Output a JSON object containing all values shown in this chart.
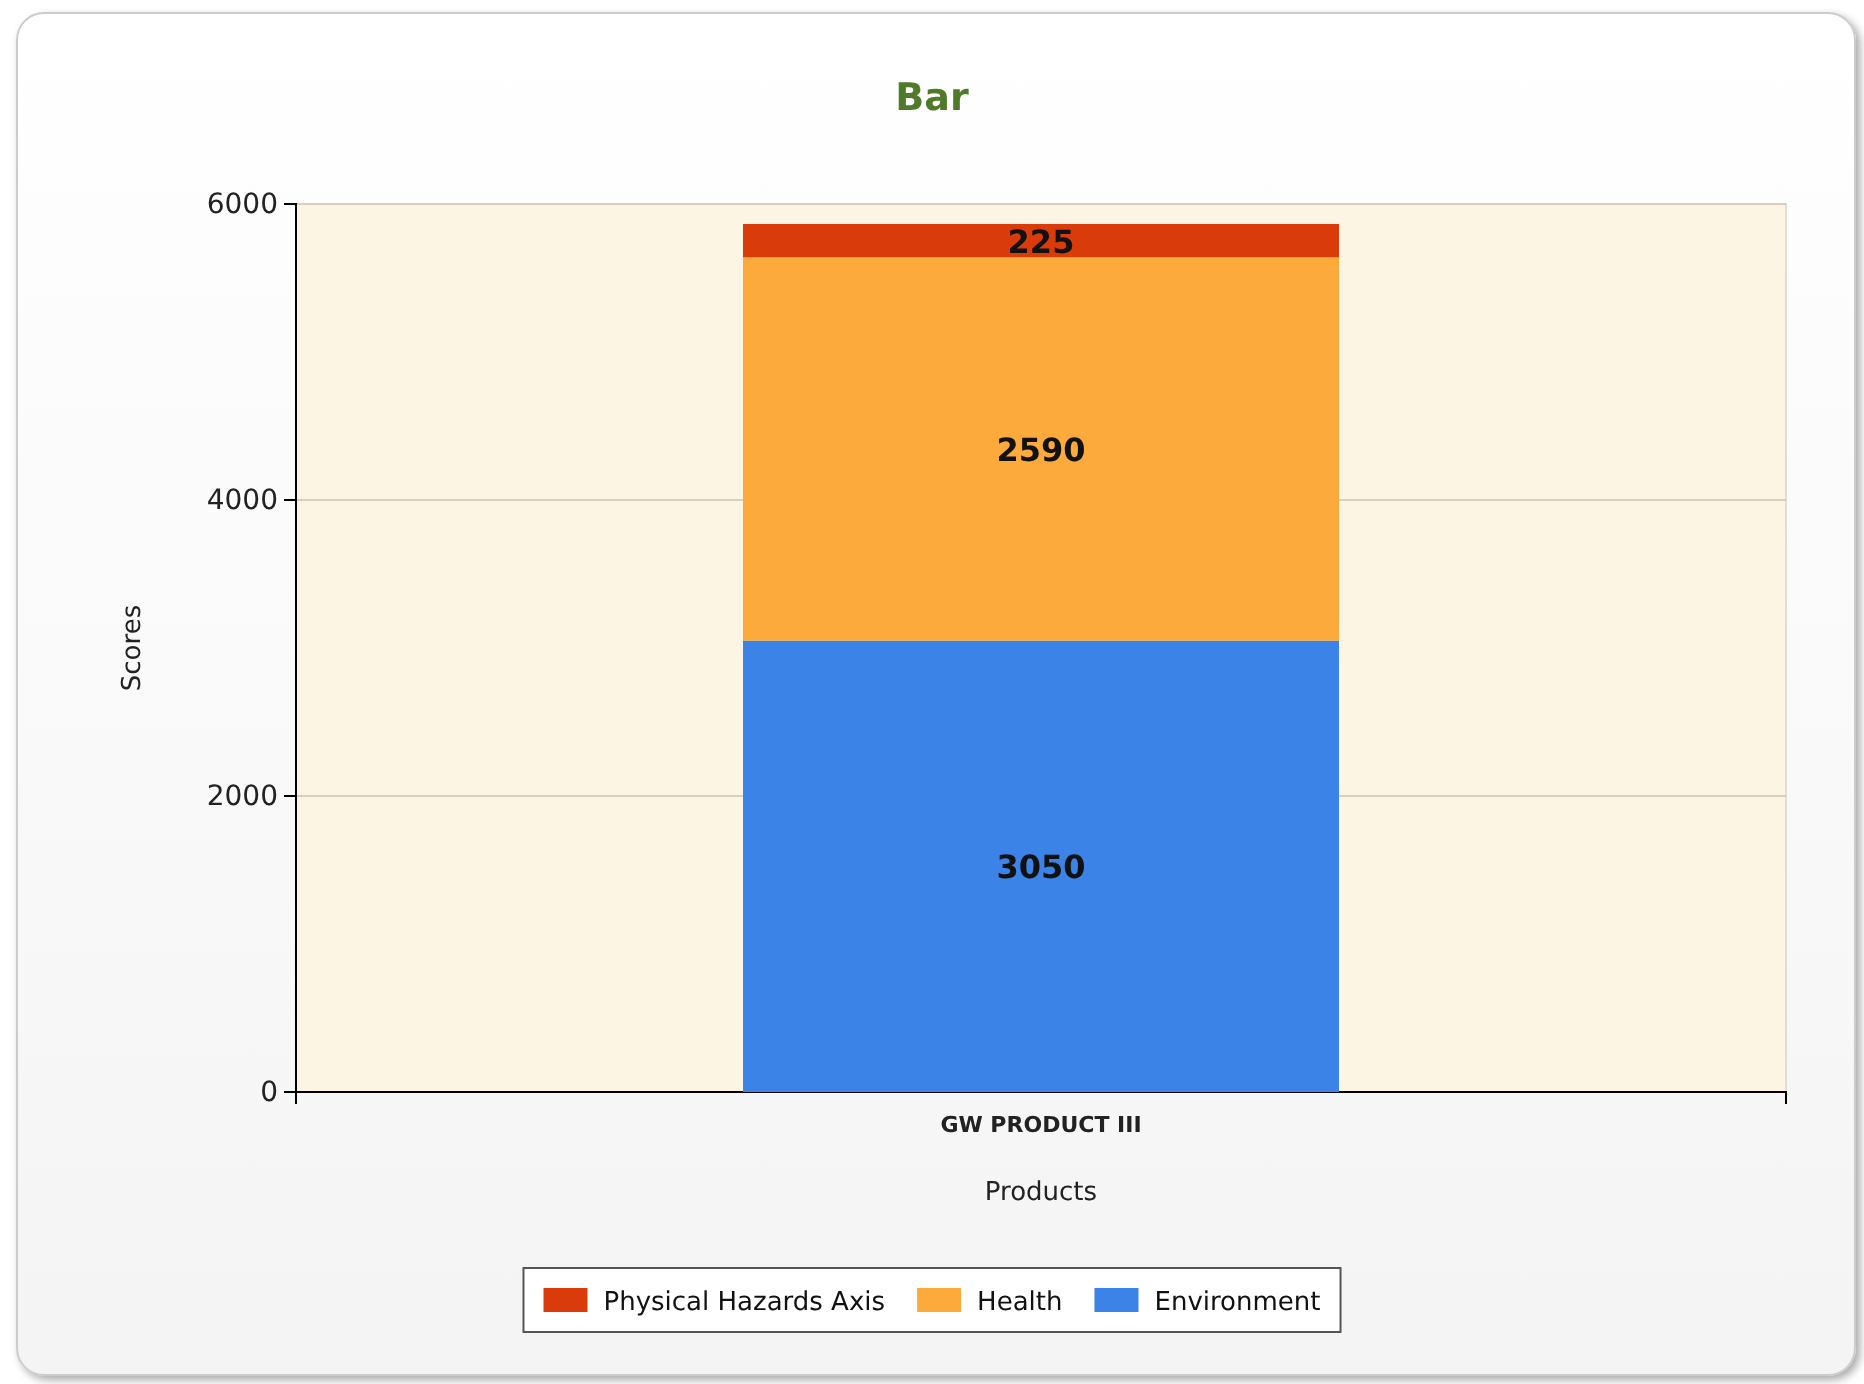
{
  "chart_data": {
    "type": "bar",
    "title": "Bar",
    "xlabel": "Products",
    "ylabel": "Scores",
    "categories": [
      "GW PRODUCT III"
    ],
    "stacked": true,
    "series": [
      {
        "name": "Environment",
        "color": "#3b83e6",
        "values": [
          3050
        ]
      },
      {
        "name": "Health",
        "color": "#fbaa3b",
        "values": [
          2590
        ]
      },
      {
        "name": "Physical Hazards Axis",
        "color": "#d93b0b",
        "values": [
          225
        ]
      }
    ],
    "ylim": [
      0,
      6000
    ],
    "yticks": [
      0,
      2000,
      4000,
      6000
    ],
    "grid": "y",
    "legend": "bottom",
    "data_labels": true
  }
}
